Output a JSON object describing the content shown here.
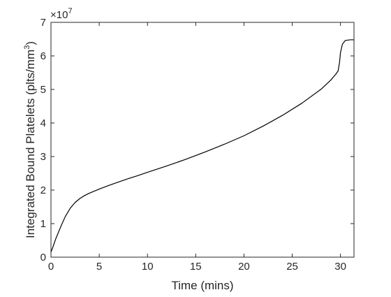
{
  "chart_data": {
    "type": "line",
    "title": "",
    "xlabel": "Time (mins)",
    "ylabel_main": "Integrated Bound Platelets (plts/mm",
    "ylabel_sup": "3",
    "ylabel_close": ")",
    "xlim": [
      0,
      31.4
    ],
    "ylim": [
      0,
      70000000
    ],
    "y_scale_factor_text": "×10",
    "y_scale_factor_exp": "7",
    "xticks": [
      0,
      5,
      10,
      15,
      20,
      25,
      30
    ],
    "xtick_labels": [
      "0",
      "5",
      "10",
      "15",
      "20",
      "25",
      "30"
    ],
    "yticks": [
      0,
      10000000,
      20000000,
      30000000,
      40000000,
      50000000,
      60000000,
      70000000
    ],
    "ytick_labels": [
      "0",
      "1",
      "2",
      "3",
      "4",
      "5",
      "6",
      "7"
    ],
    "grid": false,
    "legend": "none",
    "series": [
      {
        "color": "#000000",
        "x": [
          0,
          0.2,
          0.5,
          1.0,
          1.5,
          2.0,
          2.5,
          3.0,
          3.5,
          4.0,
          5.0,
          6.0,
          7.0,
          8.0,
          9.0,
          10.0,
          12.0,
          14.0,
          16.0,
          18.0,
          20.0,
          22.0,
          24.0,
          26.0,
          28.0,
          29.0,
          29.5,
          29.75,
          29.9,
          30.0,
          30.2,
          30.5,
          31.0,
          31.4
        ],
        "y": [
          1500000,
          3000000,
          5500000,
          9000000,
          12200000,
          14600000,
          16300000,
          17500000,
          18400000,
          19100000,
          20300000,
          21400000,
          22400000,
          23400000,
          24300000,
          25300000,
          27200000,
          29200000,
          31400000,
          33700000,
          36200000,
          39100000,
          42300000,
          45900000,
          50100000,
          52800000,
          54500000,
          55500000,
          58000000,
          61000000,
          63500000,
          64600000,
          64800000,
          64800000
        ]
      }
    ]
  }
}
